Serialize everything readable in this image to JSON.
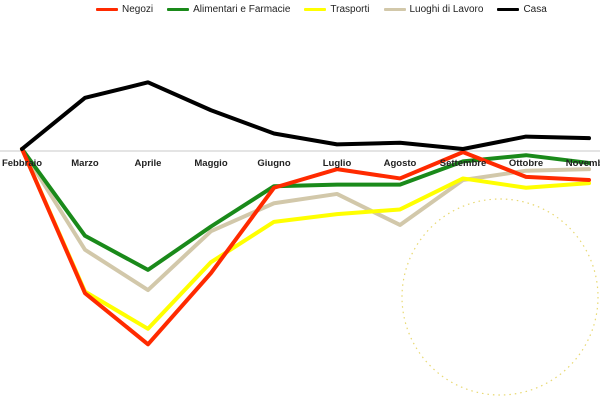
{
  "chart_data": {
    "type": "line",
    "categories": [
      "Febbraio",
      "Marzo",
      "Aprile",
      "Maggio",
      "Giugno",
      "Luglio",
      "Agosto",
      "Settembre",
      "Ottobre",
      "Novembre"
    ],
    "series": [
      {
        "name": "Negozi",
        "color": "#ff2a00",
        "values": [
          0,
          -93,
          -126,
          -80,
          -25,
          -13,
          -19,
          -2,
          -18,
          -20
        ]
      },
      {
        "name": "Alimentari e Farmacie",
        "color": "#1a8a1a",
        "values": [
          0,
          -56,
          -78,
          -50,
          -24,
          -23,
          -23,
          -8,
          -4,
          -9
        ]
      },
      {
        "name": "Trasporti",
        "color": "#ffff00",
        "values": [
          0,
          -92,
          -116,
          -73,
          -47,
          -42,
          -39,
          -19,
          -25,
          -22
        ]
      },
      {
        "name": "Luoghi di Lavoro",
        "color": "#d2c8aa",
        "values": [
          0,
          -65,
          -91,
          -53,
          -35,
          -29,
          -49,
          -20,
          -14,
          -13
        ]
      },
      {
        "name": "Casa",
        "color": "#000000",
        "values": [
          0,
          33,
          43,
          25,
          10,
          3,
          4,
          0,
          8,
          7
        ]
      }
    ],
    "ylim": [
      -140,
      50
    ],
    "grid": false,
    "legend_position": "top"
  }
}
